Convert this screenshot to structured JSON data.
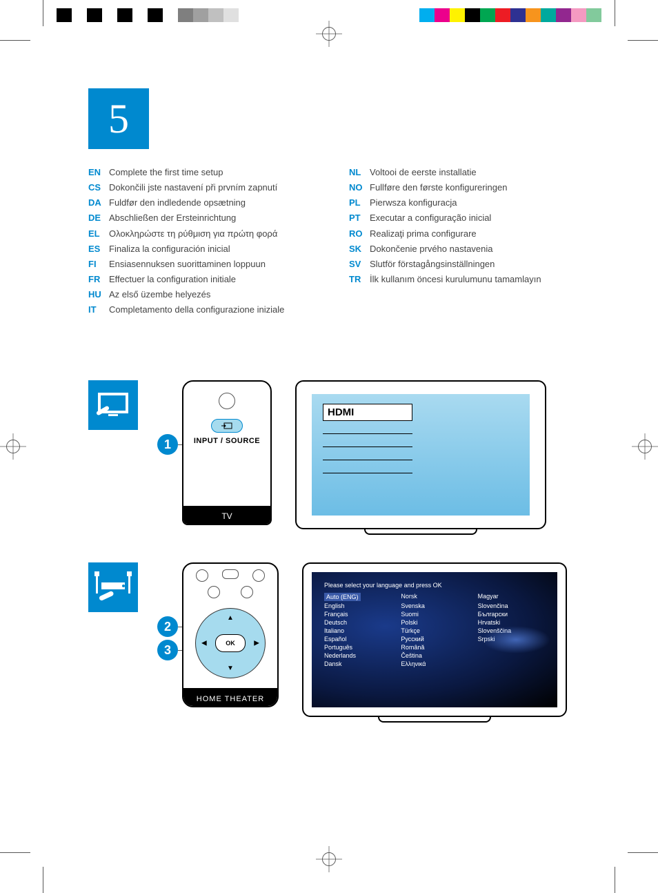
{
  "colors": {
    "brand": "#0089cf",
    "brand_light": "#a6dbee",
    "text": "#555555",
    "text_light": "#777777",
    "screen_gradient_top": "#a9daf0",
    "screen_gradient_bottom": "#6cbde5"
  },
  "print_marks": {
    "left_swatches": [
      "#000000",
      "#ffffff",
      "#000000",
      "#ffffff",
      "#000000",
      "#ffffff",
      "#000000",
      "#ffffff",
      "#7f7f7f",
      "#a0a0a0",
      "#c0c0c0",
      "#e0e0e0"
    ],
    "right_swatches": [
      "#00aeef",
      "#ec008c",
      "#fff200",
      "#000000",
      "#00a651",
      "#ed1c24",
      "#2e3192",
      "#f7941d",
      "#00a99d",
      "#92278f",
      "#f49ac1",
      "#82ca9c"
    ]
  },
  "step_number": "5",
  "languages_left": [
    {
      "code": "EN",
      "text": "Complete the first time setup"
    },
    {
      "code": "CS",
      "text": "Dokončili jste nastavení při prvním zapnutí"
    },
    {
      "code": "DA",
      "text": "Fuldfør den indledende opsætning"
    },
    {
      "code": "DE",
      "text": "Abschließen der Ersteinrichtung"
    },
    {
      "code": "EL",
      "text": "Ολοκληρώστε τη ρύθμιση για πρώτη φορά"
    },
    {
      "code": "ES",
      "text": "Finaliza la configuración inicial"
    },
    {
      "code": "FI",
      "text": "Ensiasennuksen suorittaminen loppuun"
    },
    {
      "code": "FR",
      "text": "Effectuer la configuration initiale"
    },
    {
      "code": "HU",
      "text": "Az első üzembe helyezés"
    },
    {
      "code": "IT",
      "text": "Completamento della configurazione iniziale"
    }
  ],
  "languages_right": [
    {
      "code": "NL",
      "text": "Voltooi de eerste installatie"
    },
    {
      "code": "NO",
      "text": "Fullføre den første konfigureringen"
    },
    {
      "code": "PL",
      "text": "Pierwsza konfiguracja"
    },
    {
      "code": "PT",
      "text": "Executar a configuração inicial"
    },
    {
      "code": "RO",
      "text": "Realizaţi prima configurare"
    },
    {
      "code": "SK",
      "text": "Dokončenie prvého nastavenia"
    },
    {
      "code": "SV",
      "text": "Slutför förstagångsinställningen"
    },
    {
      "code": "TR",
      "text": "İlk kullanım öncesi kurulumunu tamamlayın"
    }
  ],
  "figure1": {
    "step": "1",
    "input_label": "INPUT / SOURCE",
    "remote_label": "TV",
    "selected_source": "HDMI"
  },
  "figure2": {
    "step_a": "2",
    "step_b": "3",
    "ok_label": "OK",
    "remote_label": "HOME THEATER",
    "prompt": "Please select your language and press OK",
    "lang_options": [
      "Auto (ENG)",
      "Norsk",
      "Magyar",
      "English",
      "Svenska",
      "Slovenčina",
      "Français",
      "Suomi",
      "Български",
      "Deutsch",
      "Polski",
      "Hrvatski",
      "Italiano",
      "Türkçe",
      "Slovenščina",
      "Español",
      "Русский",
      "Srpski",
      "Português",
      "Română",
      "",
      "Nederlands",
      "Čeština",
      "",
      "Dansk",
      "Ελληνικά",
      ""
    ]
  }
}
